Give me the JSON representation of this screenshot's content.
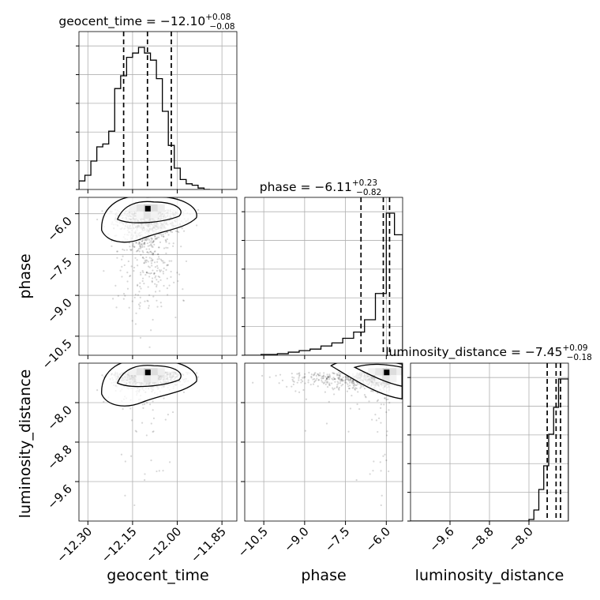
{
  "chart_data": {
    "type": "corner",
    "parameters": [
      "geocent_time",
      "phase",
      "luminosity_distance"
    ],
    "axis_labels": {
      "geocent_time": "geocent_time",
      "phase": "phase",
      "luminosity_distance": "luminosity_distance"
    },
    "titles": [
      {
        "param": "geocent_time",
        "prefix": "geocent_time = ",
        "median": "−12.10",
        "upper": "+0.08",
        "lower": "−0.08"
      },
      {
        "param": "phase",
        "prefix": "phase = ",
        "median": "−6.11",
        "upper": "+0.23",
        "lower": "−0.82"
      },
      {
        "param": "luminosity_distance",
        "prefix": "luminosity_distance = ",
        "median": "−7.45",
        "upper": "+0.09",
        "lower": "−0.18"
      }
    ],
    "ranges": {
      "geocent_time": [
        -12.33,
        -11.8
      ],
      "phase": [
        -11.2,
        -5.4
      ],
      "luminosity_distance": [
        -10.4,
        -7.2
      ]
    },
    "ticks": {
      "geocent_time": {
        "values": [
          -12.3,
          -12.15,
          -12.0,
          -11.85
        ],
        "labels": [
          "−12.30",
          "−12.15",
          "−12.00",
          "−11.85"
        ]
      },
      "phase": {
        "values": [
          -10.5,
          -9.0,
          -7.5,
          -6.0
        ],
        "labels": [
          "−10.5",
          "−9.0",
          "−7.5",
          "−6.0"
        ]
      },
      "luminosity_distance": {
        "values": [
          -9.6,
          -8.8,
          -8.0
        ],
        "labels": [
          "−9.6",
          "−8.8",
          "−8.0"
        ]
      }
    },
    "quantiles": {
      "geocent_time": [
        -12.18,
        -12.1,
        -12.02
      ],
      "phase": [
        -6.93,
        -6.11,
        -5.88
      ],
      "luminosity_distance": [
        -7.63,
        -7.45,
        -7.36
      ]
    },
    "histograms": {
      "geocent_time": {
        "edges": [
          -12.33,
          -12.31,
          -12.29,
          -12.27,
          -12.25,
          -12.23,
          -12.21,
          -12.19,
          -12.17,
          -12.15,
          -12.13,
          -12.11,
          -12.09,
          -12.07,
          -12.05,
          -12.03,
          -12.01,
          -11.99,
          -11.97,
          -11.95,
          -11.93,
          -11.91,
          -11.89
        ],
        "counts": [
          0.06,
          0.1,
          0.2,
          0.3,
          0.32,
          0.41,
          0.71,
          0.8,
          0.93,
          0.96,
          1.0,
          0.96,
          0.91,
          0.78,
          0.55,
          0.31,
          0.15,
          0.07,
          0.04,
          0.03,
          0.01,
          0.0
        ]
      },
      "phase": {
        "edges": [
          -11.2,
          -10.6,
          -10.0,
          -9.6,
          -9.2,
          -8.8,
          -8.4,
          -8.0,
          -7.6,
          -7.2,
          -6.8,
          -6.4,
          -6.0,
          -5.7,
          -5.4
        ],
        "counts": [
          0.0,
          0.005,
          0.01,
          0.02,
          0.03,
          0.04,
          0.06,
          0.08,
          0.11,
          0.15,
          0.23,
          0.4,
          0.92,
          0.78
        ]
      },
      "luminosity_distance": {
        "edges": [
          -10.4,
          -10.0,
          -9.6,
          -9.2,
          -8.8,
          -8.4,
          -8.0,
          -7.9,
          -7.8,
          -7.7,
          -7.6,
          -7.5,
          -7.4,
          -7.3,
          -7.2
        ],
        "counts": [
          0.0,
          0.0,
          0.0,
          0.0,
          0.0,
          0.0,
          0.01,
          0.07,
          0.2,
          0.35,
          0.55,
          0.72,
          0.9,
          0.9
        ]
      }
    },
    "grid": true,
    "legend": null
  }
}
